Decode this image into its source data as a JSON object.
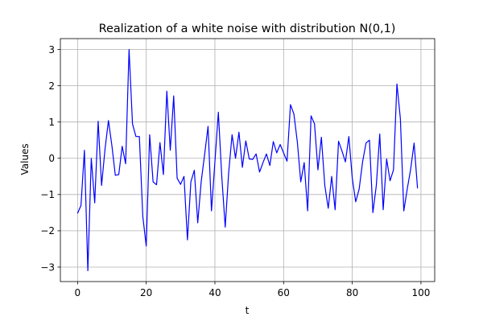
{
  "chart_data": {
    "type": "line",
    "title": "Realization of a white noise with distribution N(0,1)",
    "xlabel": "t",
    "ylabel": "Values",
    "xlim": [
      -5,
      104
    ],
    "ylim": [
      -3.4,
      3.3
    ],
    "xticks": [
      0,
      20,
      40,
      60,
      80,
      100
    ],
    "yticks": [
      -3,
      -2,
      -1,
      0,
      1,
      2,
      3
    ],
    "grid": true,
    "series": [
      {
        "color": "#0000ff",
        "x": [
          0,
          1,
          2,
          3,
          4,
          5,
          6,
          7,
          8,
          9,
          10,
          11,
          12,
          13,
          14,
          15,
          16,
          17,
          18,
          19,
          20,
          21,
          22,
          23,
          24,
          25,
          26,
          27,
          28,
          29,
          30,
          31,
          32,
          33,
          34,
          35,
          36,
          37,
          38,
          39,
          40,
          41,
          42,
          43,
          44,
          45,
          46,
          47,
          48,
          49,
          50,
          51,
          52,
          53,
          54,
          55,
          56,
          57,
          58,
          59,
          60,
          61,
          62,
          63,
          64,
          65,
          66,
          67,
          68,
          69,
          70,
          71,
          72,
          73,
          74,
          75,
          76,
          77,
          78,
          79,
          80,
          81,
          82,
          83,
          84,
          85,
          86,
          87,
          88,
          89,
          90,
          91,
          92,
          93,
          94,
          95,
          96,
          97,
          98,
          99
        ],
        "values": [
          -1.52,
          -1.3,
          0.22,
          -3.1,
          0.0,
          -1.23,
          1.02,
          -0.75,
          0.25,
          1.04,
          0.35,
          -0.47,
          -0.45,
          0.33,
          -0.15,
          3.0,
          0.95,
          0.6,
          0.6,
          -1.6,
          -2.42,
          0.65,
          -0.65,
          -0.73,
          0.43,
          -0.45,
          1.85,
          0.22,
          1.72,
          -0.55,
          -0.72,
          -0.5,
          -2.25,
          -0.65,
          -0.33,
          -1.78,
          -0.65,
          0.1,
          0.88,
          -1.45,
          -0.1,
          1.27,
          -0.5,
          -1.9,
          -0.4,
          0.65,
          0.0,
          0.72,
          -0.25,
          0.48,
          -0.02,
          -0.03,
          0.12,
          -0.38,
          -0.12,
          0.12,
          -0.2,
          0.46,
          0.15,
          0.38,
          0.15,
          -0.08,
          1.48,
          1.22,
          0.45,
          -0.65,
          -0.12,
          -1.45,
          1.17,
          0.95,
          -0.32,
          0.58,
          -0.75,
          -1.38,
          -0.5,
          -1.42,
          0.47,
          0.2,
          -0.1,
          0.6,
          -0.55,
          -1.2,
          -0.85,
          -0.1,
          0.42,
          0.5,
          -1.5,
          -0.75,
          0.67,
          -1.42,
          -0.02,
          -0.62,
          -0.32,
          2.05,
          1.1,
          -1.45,
          -0.85,
          -0.3,
          0.42,
          -0.83
        ]
      }
    ]
  }
}
